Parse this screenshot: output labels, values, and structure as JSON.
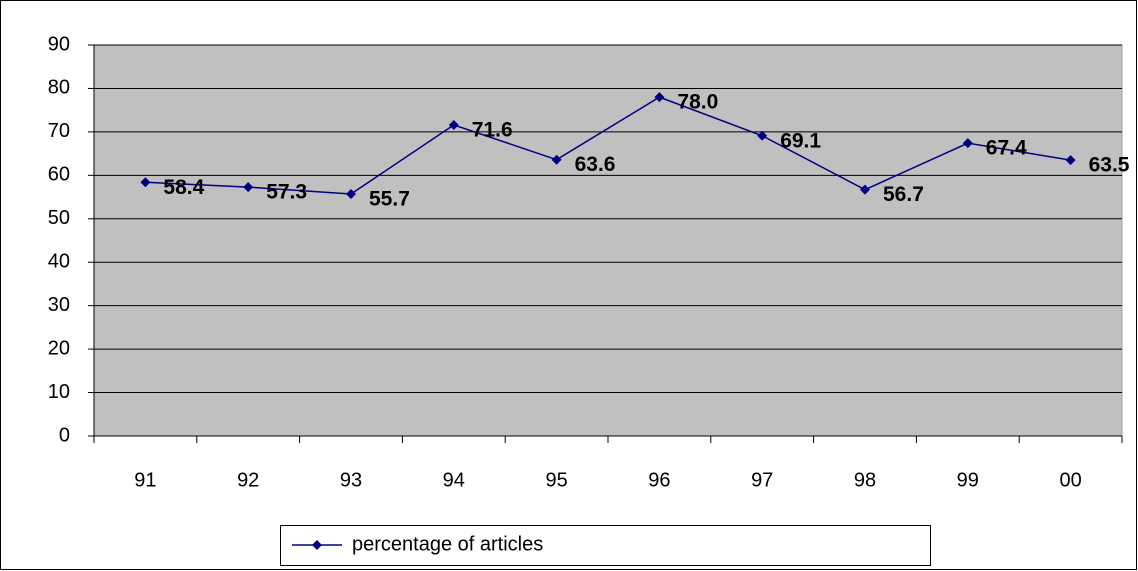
{
  "chart_data": {
    "type": "line",
    "categories": [
      "91",
      "92",
      "93",
      "94",
      "95",
      "96",
      "97",
      "98",
      "99",
      "00"
    ],
    "series": [
      {
        "name": "percentage of articles",
        "color": "#000080",
        "values": [
          58.4,
          57.3,
          55.7,
          71.6,
          63.6,
          78.0,
          69.1,
          56.7,
          67.4,
          63.5
        ],
        "value_labels": [
          "58.4",
          "57.3",
          "55.7",
          "71.6",
          "63.6",
          "78.0",
          "69.1",
          "56.7",
          "67.4",
          "63.5"
        ]
      }
    ],
    "ylim": [
      0,
      90
    ],
    "yticks": [
      0,
      10,
      20,
      30,
      40,
      50,
      60,
      70,
      80,
      90
    ],
    "grid": true,
    "plot_background": "#c0c0c0",
    "legend": "bottom"
  }
}
